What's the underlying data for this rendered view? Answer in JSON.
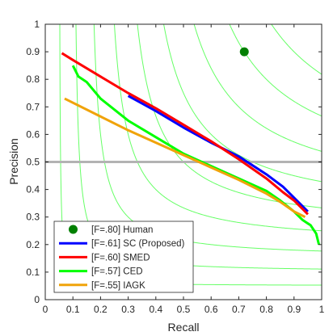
{
  "chart_data": {
    "type": "line",
    "title": "",
    "xlabel": "Recall",
    "ylabel": "Precision",
    "xlim": [
      0,
      1
    ],
    "ylim": [
      0,
      1
    ],
    "xticks": [
      "0",
      "0.1",
      "0.2",
      "0.3",
      "0.4",
      "0.5",
      "0.6",
      "0.7",
      "0.8",
      "0.9",
      "1"
    ],
    "yticks": [
      "0",
      "0.1",
      "0.2",
      "0.3",
      "0.4",
      "0.5",
      "0.6",
      "0.7",
      "0.8",
      "0.9",
      "1"
    ],
    "reference_line": {
      "y": 0.5,
      "color": "#b3b3b3"
    },
    "iso_f_color": "#66ff66",
    "iso_f_levels": [
      0.1,
      0.2,
      0.3,
      0.4,
      0.5,
      0.6,
      0.7,
      0.8,
      0.9
    ],
    "legend_position": "bottom-left",
    "series": [
      {
        "name": "[F=.80] Human",
        "color": "#008000",
        "kind": "point",
        "x": [
          0.72
        ],
        "y": [
          0.9
        ]
      },
      {
        "name": "[F=.61] SC (Proposed)",
        "color": "#0000ff",
        "kind": "line",
        "x": [
          0.3,
          0.4,
          0.5,
          0.6,
          0.7,
          0.8,
          0.86,
          0.9,
          0.93,
          0.95
        ],
        "y": [
          0.74,
          0.685,
          0.625,
          0.57,
          0.52,
          0.455,
          0.41,
          0.37,
          0.34,
          0.32
        ]
      },
      {
        "name": "[F=.60] SMED",
        "color": "#ff0000",
        "kind": "line",
        "x": [
          0.06,
          0.1,
          0.2,
          0.3,
          0.4,
          0.5,
          0.6,
          0.7,
          0.8,
          0.86,
          0.9,
          0.93,
          0.95
        ],
        "y": [
          0.895,
          0.87,
          0.81,
          0.75,
          0.695,
          0.635,
          0.575,
          0.51,
          0.44,
          0.39,
          0.36,
          0.33,
          0.31
        ]
      },
      {
        "name": "[F=.57] CED",
        "color": "#00ff00",
        "kind": "line",
        "x": [
          0.1,
          0.12,
          0.15,
          0.2,
          0.3,
          0.4,
          0.5,
          0.6,
          0.7,
          0.8,
          0.85,
          0.9,
          0.93,
          0.96,
          0.98,
          0.99
        ],
        "y": [
          0.85,
          0.81,
          0.79,
          0.73,
          0.65,
          0.59,
          0.53,
          0.485,
          0.44,
          0.395,
          0.36,
          0.32,
          0.29,
          0.27,
          0.24,
          0.2
        ]
      },
      {
        "name": "[F=.55] IAGK",
        "color": "#f0a30a",
        "kind": "line",
        "x": [
          0.07,
          0.2,
          0.3,
          0.4,
          0.5,
          0.6,
          0.7,
          0.8,
          0.85,
          0.9,
          0.94
        ],
        "y": [
          0.73,
          0.665,
          0.615,
          0.57,
          0.525,
          0.48,
          0.435,
          0.385,
          0.355,
          0.32,
          0.3
        ]
      }
    ]
  }
}
